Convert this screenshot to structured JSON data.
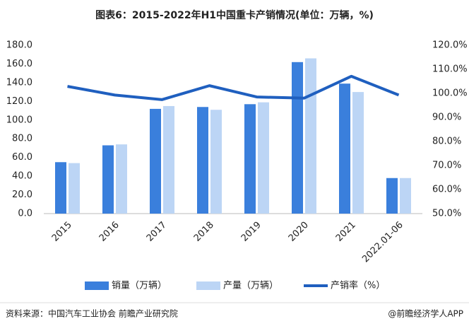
{
  "chart_data": {
    "type": "bar-line",
    "title": "图表6：2015-2022年H1中国重卡产销情况(单位：万辆，%)",
    "categories": [
      "2015",
      "2016",
      "2017",
      "2018",
      "2019",
      "2020",
      "2021",
      "2022.01-06"
    ],
    "series": [
      {
        "name": "销量（万辆）",
        "type": "bar",
        "color": "#3a7fdc",
        "values": [
          55,
          73,
          112,
          114,
          117,
          162,
          139,
          38
        ]
      },
      {
        "name": "产量（万辆）",
        "type": "bar",
        "color": "#bcd5f5",
        "values": [
          54,
          74,
          115,
          111,
          119,
          166,
          130,
          38
        ]
      },
      {
        "name": "产销率（%）",
        "type": "line",
        "axis": "y2",
        "color": "#1f5fbf",
        "values": [
          102.9,
          99.3,
          97.4,
          103.2,
          98.5,
          98.0,
          107.1,
          99.3
        ]
      }
    ],
    "ylim": [
      0,
      180
    ],
    "yticks": [
      {
        "value": 0,
        "label": "0.0"
      },
      {
        "value": 20,
        "label": "20.0"
      },
      {
        "value": 40,
        "label": "40.0"
      },
      {
        "value": 60,
        "label": "60.0"
      },
      {
        "value": 80,
        "label": "80.0"
      },
      {
        "value": 100,
        "label": "100.0"
      },
      {
        "value": 120,
        "label": "120.0"
      },
      {
        "value": 140,
        "label": "140.0"
      },
      {
        "value": 160,
        "label": "160.0"
      },
      {
        "value": 180,
        "label": "180.0"
      }
    ],
    "y2lim": [
      50,
      120
    ],
    "y2ticks": [
      {
        "value": 50,
        "label": "50.0%"
      },
      {
        "value": 60,
        "label": "60.0%"
      },
      {
        "value": 70,
        "label": "70.0%"
      },
      {
        "value": 80,
        "label": "80.0%"
      },
      {
        "value": 90,
        "label": "90.0%"
      },
      {
        "value": 100,
        "label": "100.0%"
      },
      {
        "value": 110,
        "label": "110.0%"
      },
      {
        "value": 120,
        "label": "120.0%"
      }
    ],
    "grid": false,
    "legend": "bottom",
    "source": "资料来源：中国汽车工业协会 前瞻产业研究院",
    "credit": "@前瞻经济学人APP"
  }
}
